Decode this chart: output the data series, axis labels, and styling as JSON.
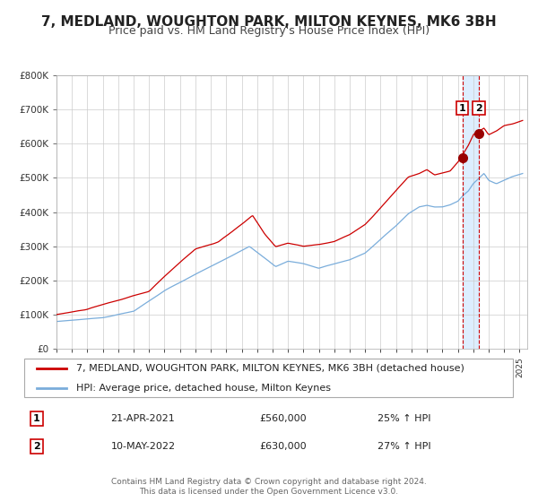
{
  "title": "7, MEDLAND, WOUGHTON PARK, MILTON KEYNES, MK6 3BH",
  "subtitle": "Price paid vs. HM Land Registry's House Price Index (HPI)",
  "legend_line1": "7, MEDLAND, WOUGHTON PARK, MILTON KEYNES, MK6 3BH (detached house)",
  "legend_line2": "HPI: Average price, detached house, Milton Keynes",
  "sale1_date": "21-APR-2021",
  "sale1_price": "£560,000",
  "sale1_hpi": "25% ↑ HPI",
  "sale2_date": "10-MAY-2022",
  "sale2_price": "£630,000",
  "sale2_hpi": "27% ↑ HPI",
  "footer1": "Contains HM Land Registry data © Crown copyright and database right 2024.",
  "footer2": "This data is licensed under the Open Government Licence v3.0.",
  "price_line_color": "#cc0000",
  "hpi_line_color": "#7aaddb",
  "background_color": "#ffffff",
  "grid_color": "#cccccc",
  "sale1_x": 2021.3,
  "sale2_x": 2022.36,
  "sale1_y": 560000,
  "sale2_y": 630000,
  "vline_color": "#cc0000",
  "shade_color": "#ddeeff",
  "ylim": [
    0,
    800000
  ],
  "xlim_start": 1995,
  "xlim_end": 2025.5,
  "title_fontsize": 11,
  "subtitle_fontsize": 9,
  "legend_fontsize": 8,
  "footer_fontsize": 6.5
}
